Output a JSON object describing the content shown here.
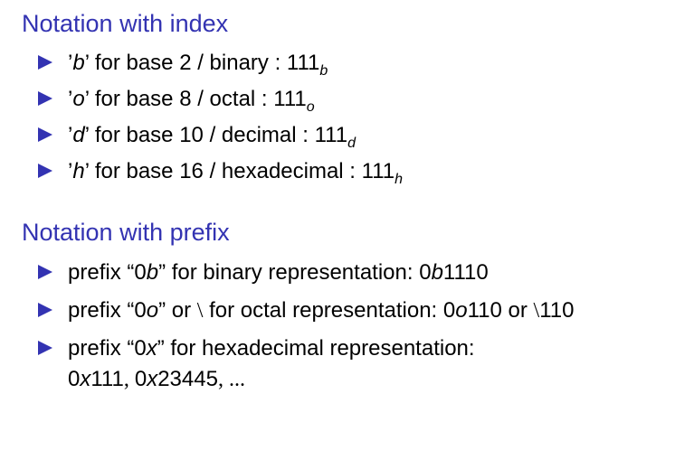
{
  "colors": {
    "heading": "#3333b2",
    "bullet": "#3333b2",
    "text": "#000000"
  },
  "section_index": {
    "title": "Notation with index",
    "items": [
      {
        "quote_open": "’",
        "letter": "b",
        "text": "’ for base 2 / binary : 111",
        "subscript": "b"
      },
      {
        "quote_open": "’",
        "letter": "o",
        "text": "’ for base 8 / octal : 111",
        "subscript": "o"
      },
      {
        "quote_open": "’",
        "letter": "d",
        "text": "’ for base 10 / decimal : 111",
        "subscript": "d"
      },
      {
        "quote_open": "’",
        "letter": "h",
        "text": "’ for base 16 / hexadecimal : 111",
        "subscript": "h"
      }
    ]
  },
  "section_prefix": {
    "title": "Notation with prefix",
    "item1": {
      "t1": "prefix “0",
      "t2": "b",
      "t3": "” for binary representation: 0",
      "t4": "b",
      "t5": "1110"
    },
    "item2": {
      "t1": "prefix “0",
      "t2": "o",
      "t3": "” or ",
      "t4": "\\",
      "t5": " for octal representation: 0",
      "t6": "o",
      "t7": "110 or ",
      "t8": "\\",
      "t9": "110"
    },
    "item3": {
      "t1": "prefix “0",
      "t2": "x",
      "t3": "” for hexadecimal representation:",
      "c1": "0",
      "c2": "x",
      "c3": "111",
      "c4": ", ",
      "c5": "0",
      "c6": "x",
      "c7": "23445",
      "c8": ", ..."
    }
  }
}
